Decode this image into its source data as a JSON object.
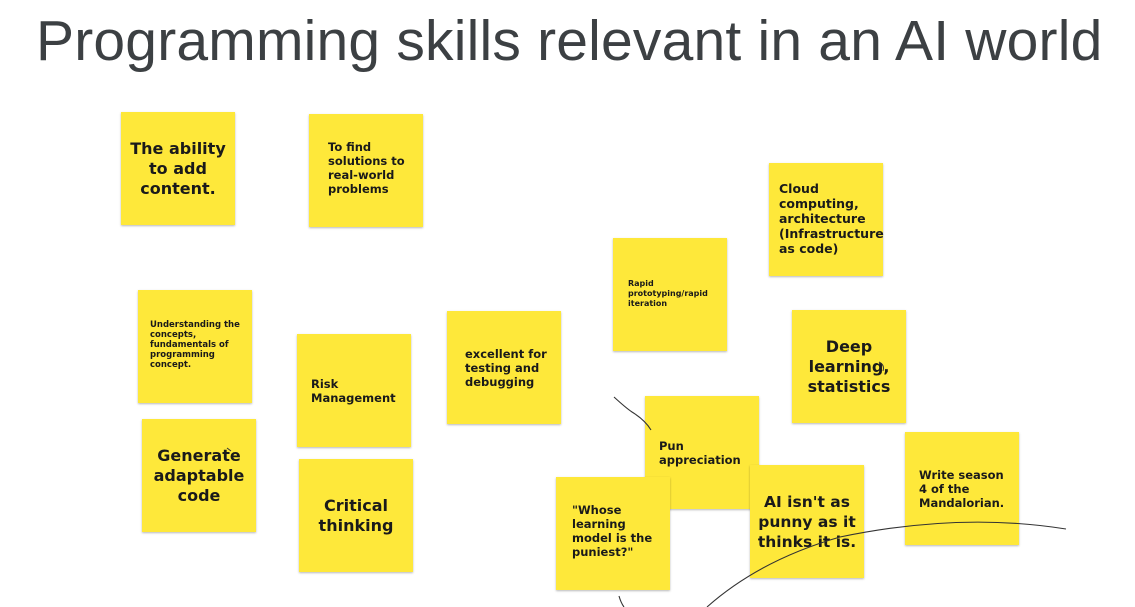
{
  "slide": {
    "title": "Programming skills relevant in an AI world",
    "note_color": "#fee83a",
    "title_color": "#3c4043"
  },
  "notes": {
    "add_content": "The ability to add content.",
    "real_world": "To find solutions to real-world problems",
    "cloud": "Cloud computing, architecture (Infrastructure as code)",
    "rapid": "Rapid prototyping/rapid iteration",
    "concepts": "Understanding the concepts, fundamentals of programming concept.",
    "risk": "Risk Management",
    "testing": "excellent for testing and debugging",
    "deep_learning": "Deep learning, statistics",
    "generate": "Generate adaptable code",
    "pun": "Pun appreciation",
    "mandalorian": "Write season 4 of the Mandalorian.",
    "critical": "Critical thinking",
    "whose": "\"Whose learning model is the puniest?\"",
    "ai_punny": "AI isn't as punny as it thinks it is."
  }
}
